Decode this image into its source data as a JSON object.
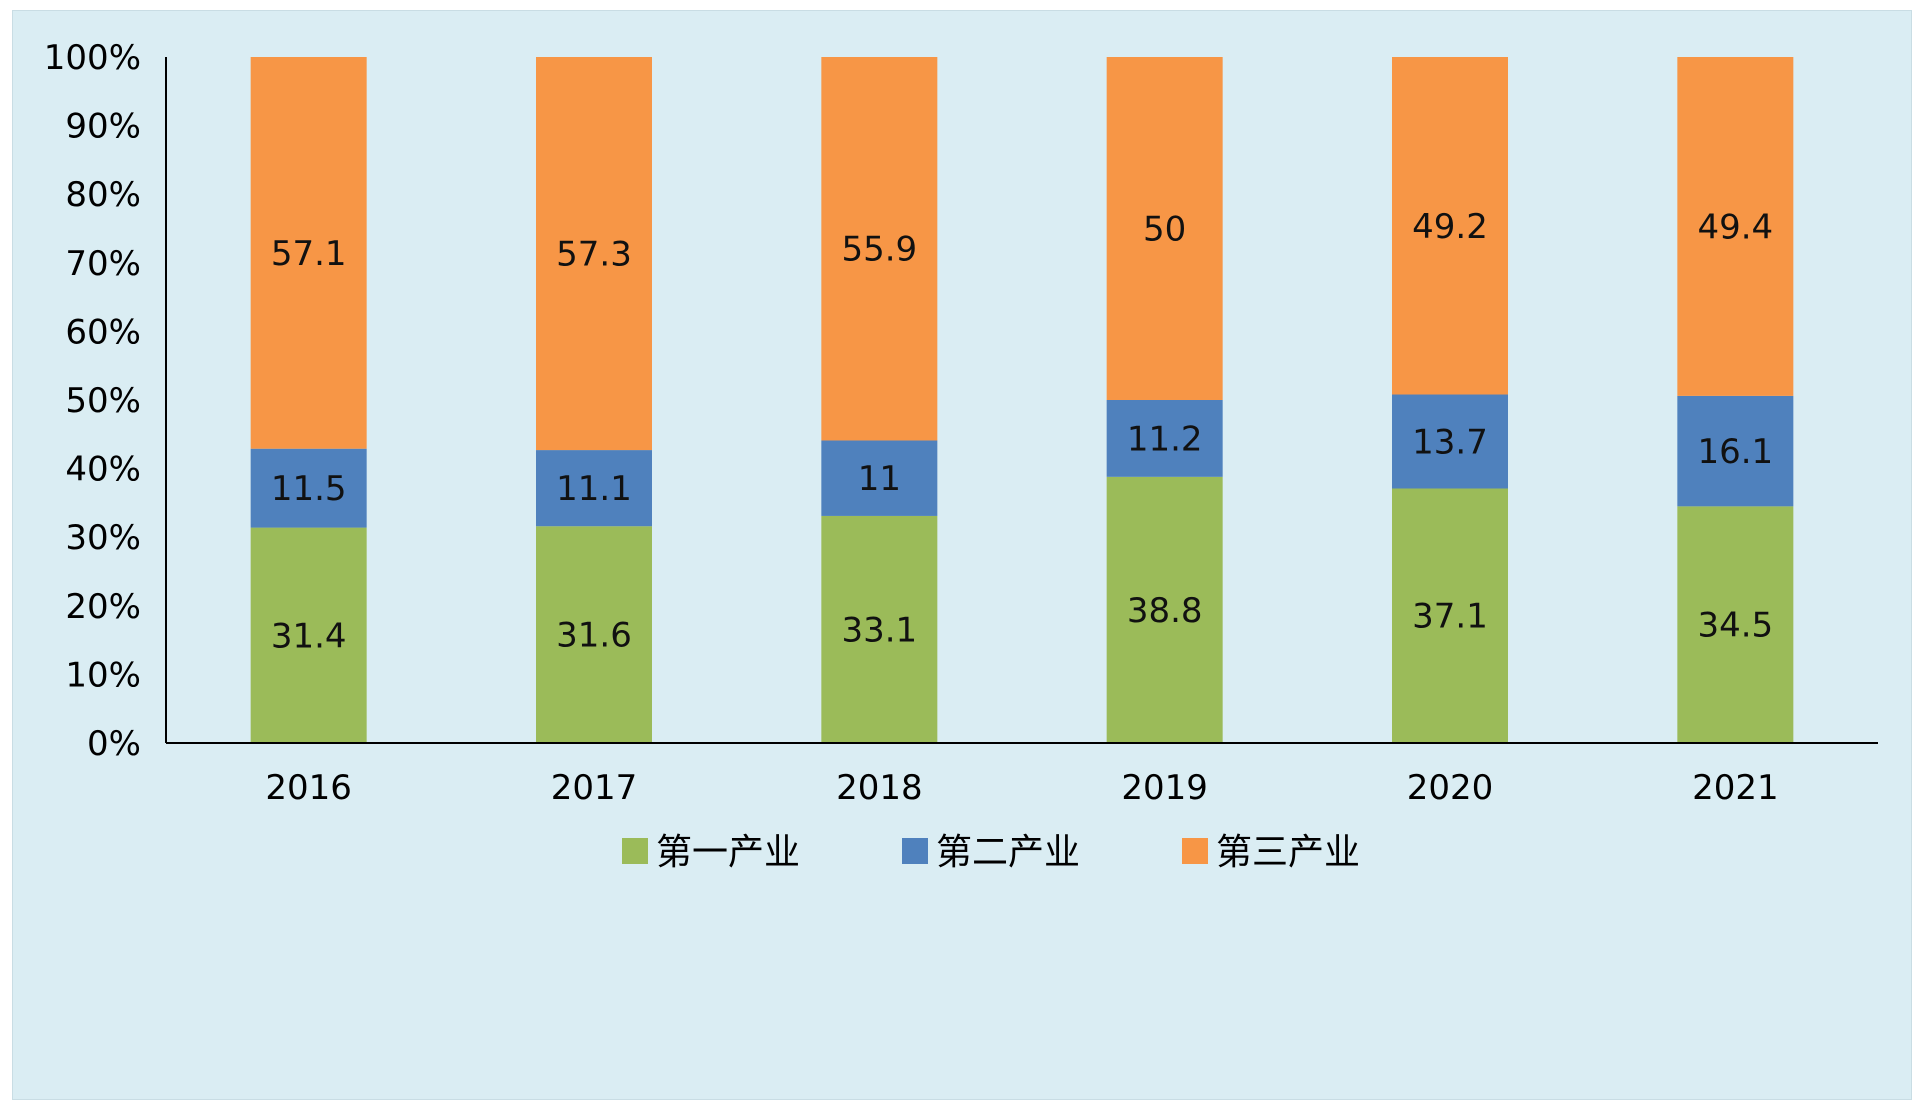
{
  "chart_data": {
    "type": "bar",
    "stacked": "percent",
    "categories": [
      "2016",
      "2017",
      "2018",
      "2019",
      "2020",
      "2021"
    ],
    "series": [
      {
        "name": "第一产业",
        "color": "#9bbb59",
        "values": [
          31.4,
          31.6,
          33.1,
          38.8,
          37.1,
          34.5
        ]
      },
      {
        "name": "第二产业",
        "color": "#4f81bd",
        "values": [
          11.5,
          11.1,
          11,
          11.2,
          13.7,
          16.1
        ]
      },
      {
        "name": "第三产业",
        "color": "#f79646",
        "values": [
          57.1,
          57.3,
          55.9,
          50,
          49.2,
          49.4
        ]
      }
    ],
    "y_ticks": [
      "0%",
      "10%",
      "20%",
      "30%",
      "40%",
      "50%",
      "60%",
      "70%",
      "80%",
      "90%",
      "100%"
    ],
    "ylim": [
      0,
      100
    ],
    "grid": false,
    "legend_position": "bottom",
    "data_labels": true,
    "title": "",
    "xlabel": "",
    "ylabel": ""
  }
}
